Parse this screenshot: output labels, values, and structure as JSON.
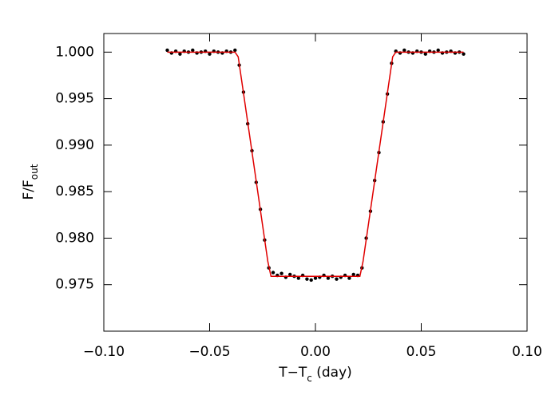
{
  "chart_data": {
    "type": "scatter",
    "xlabel": [
      "T−T",
      "c",
      " (day)"
    ],
    "ylabel": [
      "F/F",
      "out"
    ],
    "xlim": [
      -0.1,
      0.1
    ],
    "ylim": [
      0.97,
      1.002
    ],
    "xticks": [
      {
        "value": -0.1,
        "label": "−0.10"
      },
      {
        "value": -0.05,
        "label": "−0.05"
      },
      {
        "value": 0,
        "label": "0.00"
      },
      {
        "value": 0.05,
        "label": "0.05"
      },
      {
        "value": 0.1,
        "label": "0.10"
      }
    ],
    "yticks": [
      0.975,
      {
        "value": 0.98,
        "label": "0.980"
      },
      0.985,
      {
        "value": 0.99,
        "label": "0.990"
      },
      0.995,
      {
        "value": 1,
        "label": "1.000"
      }
    ],
    "series": [
      {
        "type": "scatter",
        "color": "#000000",
        "x": [
          -0.07,
          -0.068,
          -0.066,
          -0.064,
          -0.062,
          -0.06,
          -0.058,
          -0.056,
          -0.054,
          -0.052,
          -0.05,
          -0.048,
          -0.046,
          -0.044,
          -0.042,
          -0.04,
          -0.038,
          -0.036,
          -0.034,
          -0.032,
          -0.03,
          -0.028,
          -0.026,
          -0.024,
          -0.022,
          -0.02,
          -0.018,
          -0.016,
          -0.014,
          -0.012,
          -0.01,
          -0.008,
          -0.006,
          -0.004,
          -0.002,
          0.0,
          0.002,
          0.004,
          0.006,
          0.008,
          0.01,
          0.012,
          0.014,
          0.016,
          0.018,
          0.02,
          0.022,
          0.024,
          0.026,
          0.028,
          0.03,
          0.032,
          0.034,
          0.036,
          0.038,
          0.04,
          0.042,
          0.044,
          0.046,
          0.048,
          0.05,
          0.052,
          0.054,
          0.056,
          0.058,
          0.06,
          0.062,
          0.064,
          0.066,
          0.068,
          0.07
        ],
        "values": [
          1.0002,
          0.9999,
          1.0001,
          0.9998,
          1.0001,
          1.0,
          1.0002,
          0.9999,
          1.0,
          1.0001,
          0.9998,
          1.0001,
          1.0,
          0.9999,
          1.0001,
          1.0,
          1.0002,
          0.9986,
          0.9957,
          0.9923,
          0.9894,
          0.986,
          0.9831,
          0.9798,
          0.9768,
          0.9763,
          0.976,
          0.9762,
          0.9758,
          0.9761,
          0.9759,
          0.9757,
          0.976,
          0.9756,
          0.9755,
          0.9757,
          0.9758,
          0.976,
          0.9757,
          0.9759,
          0.9756,
          0.9758,
          0.976,
          0.9757,
          0.9761,
          0.976,
          0.9768,
          0.98,
          0.9829,
          0.9862,
          0.9892,
          0.9925,
          0.9955,
          0.9988,
          1.0001,
          0.9999,
          1.0002,
          1.0,
          0.9999,
          1.0001,
          1.0,
          0.9998,
          1.0001,
          1.0,
          1.0002,
          0.9999,
          1.0,
          1.0001,
          0.9999,
          1.0,
          0.9998
        ]
      },
      {
        "type": "line",
        "color": "#e00000",
        "x": [
          -0.07,
          -0.038,
          -0.0365,
          -0.034,
          -0.03,
          -0.026,
          -0.0225,
          -0.021,
          0.021,
          0.0225,
          0.026,
          0.03,
          0.034,
          0.0365,
          0.038,
          0.07
        ],
        "values": [
          1.0,
          1.0,
          0.9995,
          0.9956,
          0.9893,
          0.983,
          0.9775,
          0.9759,
          0.9759,
          0.9775,
          0.983,
          0.9893,
          0.9956,
          0.9995,
          1.0,
          1.0
        ]
      }
    ]
  }
}
